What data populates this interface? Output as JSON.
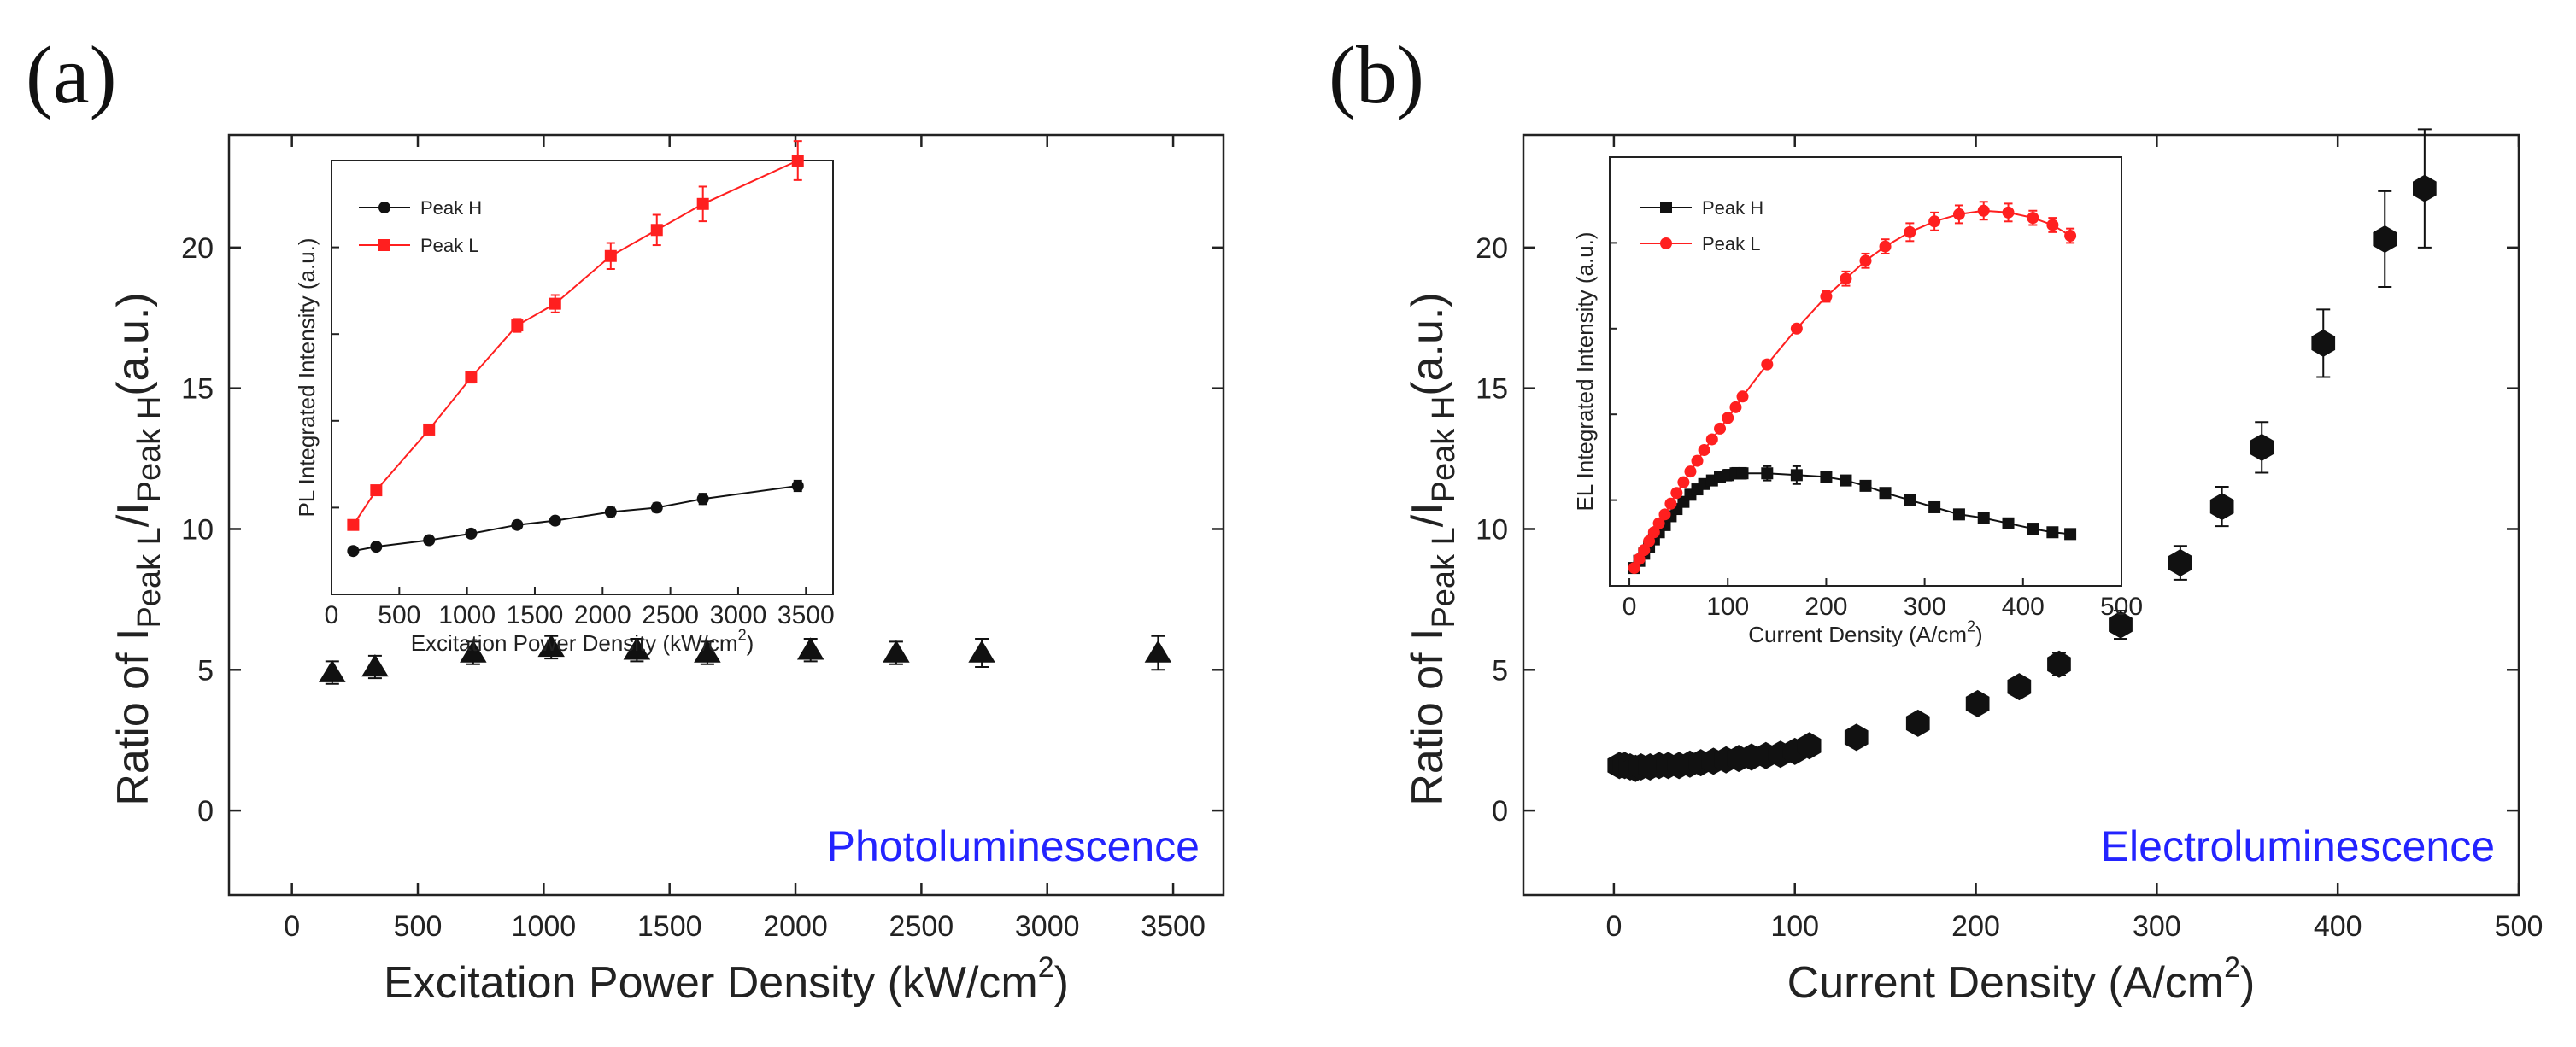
{
  "panels": {
    "a": {
      "label": "(a)"
    },
    "b": {
      "label": "(b)"
    }
  },
  "chart_data": [
    {
      "id": "a_main",
      "type": "scatter",
      "panel": "(a)",
      "xlabel": "Excitation Power Density (kW/cm²)",
      "ylabel": "Ratio of I_Peak L / I_Peak H (a.u.)",
      "ylabel_parts": {
        "pre": "Ratio of I",
        "sub1": "Peak L",
        "mid": "/I",
        "sub2": "Peak H",
        "post": "(a.u.)"
      },
      "xlim": [
        -250,
        3700
      ],
      "ylim": [
        -3,
        24
      ],
      "xticks": [
        0,
        500,
        1000,
        1500,
        2000,
        2500,
        3000,
        3500
      ],
      "yticks": [
        0,
        5,
        10,
        15,
        20
      ],
      "annotation": {
        "text": "Photoluminescence",
        "color": "#2323ff"
      },
      "marker": "triangle",
      "series": [
        {
          "name": "Ratio",
          "color": "#111111",
          "x": [
            160,
            330,
            720,
            1030,
            1370,
            1650,
            2060,
            2400,
            2740,
            3440
          ],
          "y": [
            4.9,
            5.1,
            5.6,
            5.8,
            5.7,
            5.6,
            5.7,
            5.6,
            5.6,
            5.6
          ],
          "err": [
            0.4,
            0.4,
            0.4,
            0.4,
            0.4,
            0.4,
            0.4,
            0.4,
            0.5,
            0.6
          ]
        }
      ]
    },
    {
      "id": "a_inset",
      "type": "line",
      "xlabel": "Excitation Power Density (kW/cm²)",
      "ylabel": "PL Integrated Intensity (a.u.)",
      "xlim": [
        0,
        3700
      ],
      "ylim": [
        0,
        10
      ],
      "xticks": [
        0,
        500,
        1000,
        1500,
        2000,
        2500,
        3000,
        3500
      ],
      "series": [
        {
          "name": "Peak H",
          "color": "#111111",
          "marker": "circle",
          "x": [
            160,
            330,
            720,
            1030,
            1370,
            1650,
            2060,
            2400,
            2740,
            3440
          ],
          "y": [
            1.0,
            1.1,
            1.25,
            1.4,
            1.6,
            1.7,
            1.9,
            2.0,
            2.2,
            2.5
          ],
          "err": [
            0.05,
            0.05,
            0.05,
            0.05,
            0.08,
            0.08,
            0.1,
            0.1,
            0.12,
            0.12
          ]
        },
        {
          "name": "Peak L",
          "color": "#ff1f1f",
          "marker": "square",
          "x": [
            160,
            330,
            720,
            1030,
            1370,
            1650,
            2060,
            2400,
            2740,
            3440
          ],
          "y": [
            1.6,
            2.4,
            3.8,
            5.0,
            6.2,
            6.7,
            7.8,
            8.4,
            9.0,
            10.0
          ],
          "err": [
            0.1,
            0.1,
            0.1,
            0.12,
            0.15,
            0.2,
            0.3,
            0.35,
            0.4,
            0.45
          ]
        }
      ]
    },
    {
      "id": "b_main",
      "type": "scatter",
      "panel": "(b)",
      "xlabel": "Current Density (A/cm²)",
      "ylabel": "Ratio of I_Peak L / I_Peak H (a.u.)",
      "ylabel_parts": {
        "pre": "Ratio of I",
        "sub1": "Peak L",
        "mid": "/I",
        "sub2": "Peak H",
        "post": "(a.u.)"
      },
      "xlim": [
        -50,
        500
      ],
      "ylim": [
        -3,
        24
      ],
      "xticks": [
        0,
        100,
        200,
        300,
        400,
        500
      ],
      "yticks": [
        0,
        5,
        10,
        15,
        20
      ],
      "annotation": {
        "text": "Electroluminescence",
        "color": "#2323ff"
      },
      "marker": "hexagon",
      "series": [
        {
          "name": "Ratio",
          "color": "#111111",
          "x": [
            3,
            6,
            9,
            12,
            15,
            20,
            25,
            30,
            36,
            42,
            48,
            55,
            62,
            69,
            76,
            84,
            92,
            100,
            108,
            134,
            168,
            201,
            224,
            246,
            280,
            313,
            336,
            358,
            392,
            426,
            448
          ],
          "y": [
            1.6,
            1.6,
            1.55,
            1.5,
            1.55,
            1.55,
            1.6,
            1.6,
            1.6,
            1.65,
            1.7,
            1.75,
            1.8,
            1.85,
            1.9,
            1.95,
            2.0,
            2.1,
            2.3,
            2.6,
            3.1,
            3.8,
            4.4,
            5.2,
            6.6,
            8.8,
            10.8,
            12.9,
            16.6,
            20.3,
            22.1
          ],
          "err": [
            0.15,
            0.15,
            0.15,
            0.15,
            0.15,
            0.15,
            0.15,
            0.15,
            0.15,
            0.15,
            0.15,
            0.15,
            0.15,
            0.15,
            0.15,
            0.15,
            0.15,
            0.15,
            0.2,
            0.2,
            0.2,
            0.3,
            0.3,
            0.4,
            0.5,
            0.6,
            0.7,
            0.9,
            1.2,
            1.7,
            2.1
          ]
        }
      ]
    },
    {
      "id": "b_inset",
      "type": "line",
      "xlabel": "Current Density (A/cm²)",
      "ylabel": "EL Integrated Intensity (a.u.)",
      "xlim": [
        -20,
        500
      ],
      "ylim": [
        0,
        12
      ],
      "xticks": [
        0,
        100,
        200,
        300,
        400,
        500
      ],
      "series": [
        {
          "name": "Peak H",
          "color": "#111111",
          "marker": "square",
          "x": [
            5,
            10,
            15,
            20,
            25,
            30,
            36,
            42,
            48,
            55,
            62,
            69,
            76,
            84,
            92,
            100,
            108,
            115,
            140,
            170,
            200,
            220,
            240,
            260,
            285,
            310,
            335,
            360,
            385,
            410,
            430,
            448
          ],
          "y": [
            0.5,
            0.7,
            0.9,
            1.1,
            1.3,
            1.5,
            1.7,
            1.95,
            2.15,
            2.35,
            2.55,
            2.7,
            2.85,
            2.95,
            3.05,
            3.1,
            3.15,
            3.15,
            3.15,
            3.1,
            3.05,
            2.95,
            2.8,
            2.6,
            2.4,
            2.2,
            2.0,
            1.9,
            1.75,
            1.6,
            1.5,
            1.45
          ],
          "err": [
            0.05,
            0.05,
            0.05,
            0.05,
            0.05,
            0.05,
            0.05,
            0.05,
            0.08,
            0.08,
            0.08,
            0.1,
            0.1,
            0.1,
            0.1,
            0.15,
            0.15,
            0.15,
            0.2,
            0.25,
            0.1,
            0.1,
            0.1,
            0.1,
            0.1,
            0.1,
            0.1,
            0.1,
            0.1,
            0.1,
            0.1,
            0.1
          ]
        },
        {
          "name": "Peak L",
          "color": "#ff1f1f",
          "marker": "circle",
          "x": [
            5,
            10,
            15,
            20,
            25,
            30,
            36,
            42,
            48,
            55,
            62,
            69,
            76,
            84,
            92,
            100,
            108,
            115,
            140,
            170,
            200,
            220,
            240,
            260,
            285,
            310,
            335,
            360,
            385,
            410,
            430,
            448
          ],
          "y": [
            0.5,
            0.75,
            1.0,
            1.25,
            1.5,
            1.75,
            2.0,
            2.3,
            2.6,
            2.9,
            3.2,
            3.5,
            3.8,
            4.1,
            4.4,
            4.7,
            5.0,
            5.3,
            6.2,
            7.2,
            8.1,
            8.6,
            9.1,
            9.5,
            9.9,
            10.2,
            10.4,
            10.5,
            10.45,
            10.3,
            10.1,
            9.8
          ],
          "err": [
            0.05,
            0.05,
            0.05,
            0.05,
            0.05,
            0.05,
            0.05,
            0.05,
            0.05,
            0.05,
            0.05,
            0.05,
            0.05,
            0.05,
            0.05,
            0.05,
            0.05,
            0.05,
            0.08,
            0.1,
            0.15,
            0.2,
            0.2,
            0.2,
            0.25,
            0.25,
            0.25,
            0.25,
            0.25,
            0.2,
            0.2,
            0.2
          ]
        }
      ]
    }
  ]
}
